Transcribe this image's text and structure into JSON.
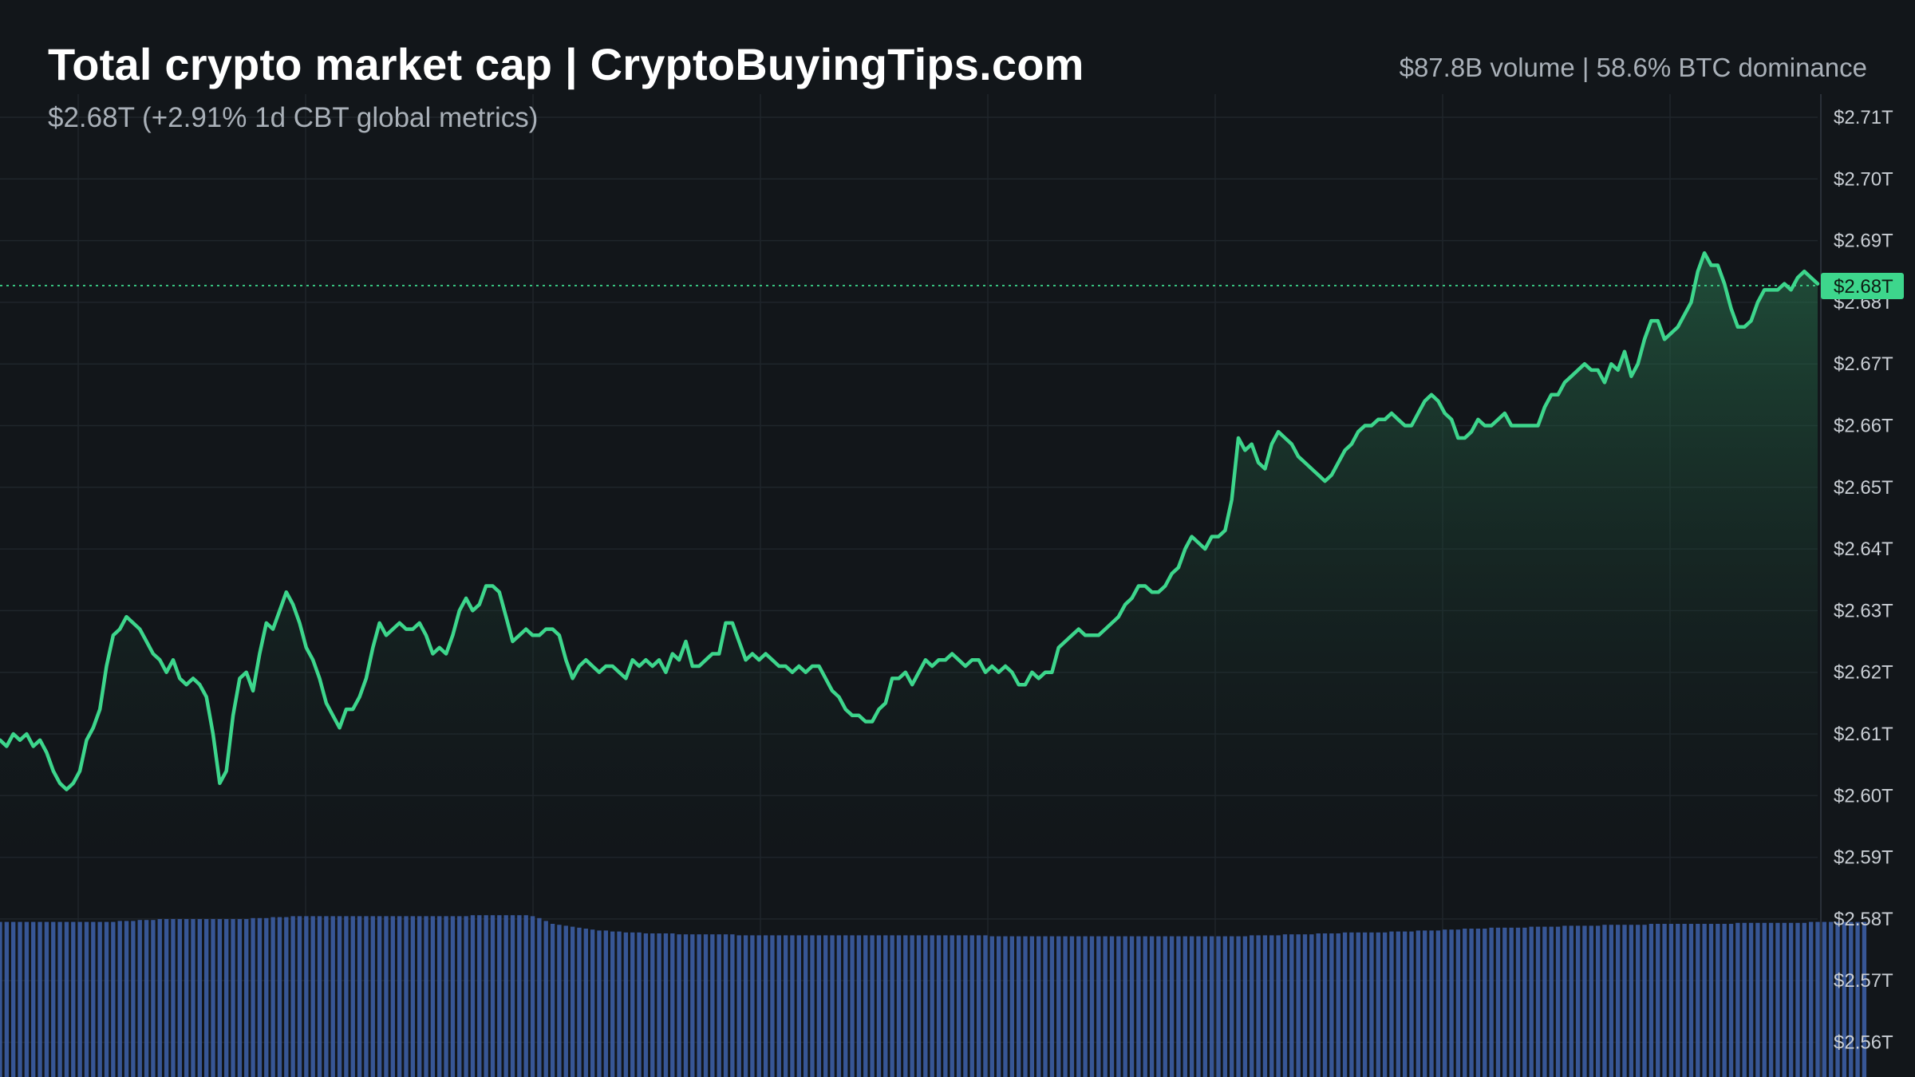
{
  "header": {
    "title": "Total crypto market cap | CryptoBuyingTips.com",
    "subtitle": "$2.68T (+2.91% 1d CBT global metrics)",
    "stats": "$87.8B volume | 58.6% BTC dominance"
  },
  "colors": {
    "background": "#12161a",
    "grid": "#1f252b",
    "line": "#3dd68c",
    "area_top": "#2a7a52",
    "volume": "#3a5a9c",
    "last_price_badge": "#3dd68c"
  },
  "chart_data": {
    "type": "area",
    "title": "Total crypto market cap | CryptoBuyingTips.com",
    "ylim": [
      2.555,
      2.712
    ],
    "y_ticks": [
      "$2.71T",
      "$2.70T",
      "$2.69T",
      "$2.68T",
      "$2.67T",
      "$2.66T",
      "$2.65T",
      "$2.64T",
      "$2.63T",
      "$2.62T",
      "$2.61T",
      "$2.60T",
      "$2.59T",
      "$2.58T",
      "$2.57T",
      "$2.56T"
    ],
    "y_tick_values": [
      2.71,
      2.7,
      2.69,
      2.68,
      2.67,
      2.66,
      2.65,
      2.64,
      2.63,
      2.62,
      2.61,
      2.6,
      2.59,
      2.58,
      2.57,
      2.56
    ],
    "last_value": 2.6827,
    "last_value_label": "$2.68T",
    "grid": true,
    "series": [
      {
        "values": [
          2.609,
          2.608,
          2.61,
          2.609,
          2.61,
          2.608,
          2.609,
          2.607,
          2.604,
          2.602,
          2.601,
          2.602,
          2.604,
          2.609,
          2.611,
          2.614,
          2.621,
          2.626,
          2.627,
          2.629,
          2.628,
          2.627,
          2.625,
          2.623,
          2.622,
          2.62,
          2.622,
          2.619,
          2.618,
          2.619,
          2.618,
          2.616,
          2.61,
          2.602,
          2.604,
          2.613,
          2.619,
          2.62,
          2.617,
          2.623,
          2.628,
          2.627,
          2.63,
          2.633,
          2.631,
          2.628,
          2.624,
          2.622,
          2.619,
          2.615,
          2.613,
          2.611,
          2.614,
          2.614,
          2.616,
          2.619,
          2.624,
          2.628,
          2.626,
          2.627,
          2.628,
          2.627,
          2.627,
          2.628,
          2.626,
          2.623,
          2.624,
          2.623,
          2.626,
          2.63,
          2.632,
          2.63,
          2.631,
          2.634,
          2.634,
          2.633,
          2.629,
          2.625,
          2.626,
          2.627,
          2.626,
          2.626,
          2.627,
          2.627,
          2.626,
          2.622,
          2.619,
          2.621,
          2.622,
          2.621,
          2.62,
          2.621,
          2.621,
          2.62,
          2.619,
          2.622,
          2.621,
          2.622,
          2.621,
          2.622,
          2.62,
          2.623,
          2.622,
          2.625,
          2.621,
          2.621,
          2.622,
          2.623,
          2.623,
          2.628,
          2.628,
          2.625,
          2.622,
          2.623,
          2.622,
          2.623,
          2.622,
          2.621,
          2.621,
          2.62,
          2.621,
          2.62,
          2.621,
          2.621,
          2.619,
          2.617,
          2.616,
          2.614,
          2.613,
          2.613,
          2.612,
          2.612,
          2.614,
          2.615,
          2.619,
          2.619,
          2.62,
          2.618,
          2.62,
          2.622,
          2.621,
          2.622,
          2.622,
          2.623,
          2.622,
          2.621,
          2.622,
          2.622,
          2.62,
          2.621,
          2.62,
          2.621,
          2.62,
          2.618,
          2.618,
          2.62,
          2.619,
          2.62,
          2.62,
          2.624,
          2.625,
          2.626,
          2.627,
          2.626,
          2.626,
          2.626,
          2.627,
          2.628,
          2.629,
          2.631,
          2.632,
          2.634,
          2.634,
          2.633,
          2.633,
          2.634,
          2.636,
          2.637,
          2.64,
          2.642,
          2.641,
          2.64,
          2.642,
          2.642,
          2.643,
          2.648,
          2.658,
          2.656,
          2.657,
          2.654,
          2.653,
          2.657,
          2.659,
          2.658,
          2.657,
          2.655,
          2.654,
          2.653,
          2.652,
          2.651,
          2.652,
          2.654,
          2.656,
          2.657,
          2.659,
          2.66,
          2.66,
          2.661,
          2.661,
          2.662,
          2.661,
          2.66,
          2.66,
          2.662,
          2.664,
          2.665,
          2.664,
          2.662,
          2.661,
          2.658,
          2.658,
          2.659,
          2.661,
          2.66,
          2.66,
          2.661,
          2.662,
          2.66,
          2.66,
          2.66,
          2.66,
          2.66,
          2.663,
          2.665,
          2.665,
          2.667,
          2.668,
          2.669,
          2.67,
          2.669,
          2.669,
          2.667,
          2.67,
          2.669,
          2.672,
          2.668,
          2.67,
          2.674,
          2.677,
          2.677,
          2.674,
          2.675,
          2.676,
          2.678,
          2.68,
          2.685,
          2.688,
          2.686,
          2.686,
          2.683,
          2.679,
          2.676,
          2.676,
          2.677,
          2.68,
          2.682,
          2.682,
          2.682,
          2.683,
          2.682,
          2.684,
          2.685,
          2.684,
          2.683
        ]
      }
    ],
    "volume_values": [
      0.81,
      0.81,
      0.81,
      0.81,
      0.81,
      0.81,
      0.81,
      0.81,
      0.81,
      0.81,
      0.81,
      0.81,
      0.81,
      0.81,
      0.81,
      0.81,
      0.81,
      0.81,
      0.815,
      0.815,
      0.815,
      0.82,
      0.82,
      0.82,
      0.825,
      0.825,
      0.825,
      0.825,
      0.825,
      0.825,
      0.825,
      0.825,
      0.825,
      0.825,
      0.825,
      0.825,
      0.825,
      0.825,
      0.83,
      0.83,
      0.83,
      0.835,
      0.835,
      0.835,
      0.84,
      0.84,
      0.84,
      0.84,
      0.84,
      0.84,
      0.84,
      0.84,
      0.84,
      0.84,
      0.84,
      0.84,
      0.84,
      0.84,
      0.84,
      0.84,
      0.84,
      0.84,
      0.84,
      0.84,
      0.84,
      0.84,
      0.84,
      0.84,
      0.84,
      0.84,
      0.84,
      0.845,
      0.845,
      0.845,
      0.845,
      0.845,
      0.845,
      0.845,
      0.845,
      0.845,
      0.84,
      0.83,
      0.815,
      0.8,
      0.795,
      0.79,
      0.785,
      0.78,
      0.775,
      0.77,
      0.765,
      0.765,
      0.76,
      0.76,
      0.755,
      0.755,
      0.755,
      0.75,
      0.75,
      0.75,
      0.75,
      0.75,
      0.745,
      0.745,
      0.745,
      0.745,
      0.745,
      0.745,
      0.745,
      0.745,
      0.745,
      0.74,
      0.74,
      0.74,
      0.74,
      0.74,
      0.74,
      0.74,
      0.74,
      0.74,
      0.74,
      0.74,
      0.74,
      0.74,
      0.74,
      0.74,
      0.74,
      0.74,
      0.74,
      0.74,
      0.74,
      0.74,
      0.74,
      0.74,
      0.74,
      0.74,
      0.74,
      0.74,
      0.74,
      0.74,
      0.74,
      0.74,
      0.74,
      0.74,
      0.74,
      0.74,
      0.74,
      0.74,
      0.74,
      0.735,
      0.735,
      0.735,
      0.735,
      0.735,
      0.735,
      0.735,
      0.735,
      0.735,
      0.735,
      0.735,
      0.735,
      0.735,
      0.735,
      0.735,
      0.735,
      0.735,
      0.735,
      0.735,
      0.735,
      0.735,
      0.735,
      0.735,
      0.735,
      0.735,
      0.735,
      0.735,
      0.735,
      0.735,
      0.735,
      0.735,
      0.735,
      0.735,
      0.735,
      0.735,
      0.735,
      0.735,
      0.735,
      0.735,
      0.74,
      0.74,
      0.74,
      0.74,
      0.74,
      0.745,
      0.745,
      0.745,
      0.745,
      0.745,
      0.75,
      0.75,
      0.75,
      0.75,
      0.755,
      0.755,
      0.755,
      0.755,
      0.755,
      0.755,
      0.755,
      0.76,
      0.76,
      0.76,
      0.76,
      0.765,
      0.765,
      0.765,
      0.765,
      0.77,
      0.77,
      0.77,
      0.775,
      0.775,
      0.775,
      0.775,
      0.78,
      0.78,
      0.78,
      0.78,
      0.78,
      0.78,
      0.785,
      0.785,
      0.785,
      0.785,
      0.785,
      0.79,
      0.79,
      0.79,
      0.79,
      0.79,
      0.79,
      0.795,
      0.795,
      0.795,
      0.795,
      0.795,
      0.795,
      0.795,
      0.8,
      0.8,
      0.8,
      0.8,
      0.8,
      0.8,
      0.8,
      0.8,
      0.8,
      0.8,
      0.8,
      0.8,
      0.8,
      0.805,
      0.805,
      0.805,
      0.805,
      0.805,
      0.805,
      0.805,
      0.805,
      0.805,
      0.805,
      0.805,
      0.81,
      0.81,
      0.81,
      0.81,
      0.81,
      0.81,
      0.81,
      0.81,
      0.81
    ]
  }
}
